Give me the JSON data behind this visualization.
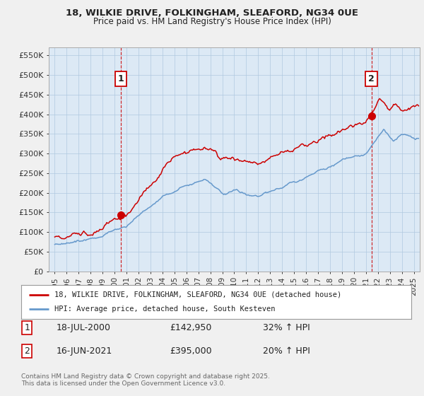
{
  "title1": "18, WILKIE DRIVE, FOLKINGHAM, SLEAFORD, NG34 0UE",
  "title2": "Price paid vs. HM Land Registry's House Price Index (HPI)",
  "xlim": [
    1994.5,
    2025.5
  ],
  "ylim": [
    0,
    570000
  ],
  "yticks": [
    0,
    50000,
    100000,
    150000,
    200000,
    250000,
    300000,
    350000,
    400000,
    450000,
    500000,
    550000
  ],
  "ytick_labels": [
    "£0",
    "£50K",
    "£100K",
    "£150K",
    "£200K",
    "£250K",
    "£300K",
    "£350K",
    "£400K",
    "£450K",
    "£500K",
    "£550K"
  ],
  "xtick_years": [
    1995,
    1996,
    1997,
    1998,
    1999,
    2000,
    2001,
    2002,
    2003,
    2004,
    2005,
    2006,
    2007,
    2008,
    2009,
    2010,
    2011,
    2012,
    2013,
    2014,
    2015,
    2016,
    2017,
    2018,
    2019,
    2020,
    2021,
    2022,
    2023,
    2024,
    2025
  ],
  "transaction1_x": 2000.54,
  "transaction1_y": 142950,
  "transaction1_label": "1",
  "transaction2_x": 2021.46,
  "transaction2_y": 395000,
  "transaction2_label": "2",
  "vline1_x": 2000.54,
  "vline2_x": 2021.46,
  "vline_color": "#cc0000",
  "red_color": "#cc0000",
  "blue_color": "#6699cc",
  "legend_label1": "18, WILKIE DRIVE, FOLKINGHAM, SLEAFORD, NG34 0UE (detached house)",
  "legend_label2": "HPI: Average price, detached house, South Kesteven",
  "annotation1_date": "18-JUL-2000",
  "annotation1_price": "£142,950",
  "annotation1_hpi": "32% ↑ HPI",
  "annotation2_date": "16-JUN-2021",
  "annotation2_price": "£395,000",
  "annotation2_hpi": "20% ↑ HPI",
  "footer": "Contains HM Land Registry data © Crown copyright and database right 2025.\nThis data is licensed under the Open Government Licence v3.0.",
  "bg_color": "#f0f0f0",
  "plot_bg_color": "#dce9f5",
  "grid_color": "#b0c8e0"
}
